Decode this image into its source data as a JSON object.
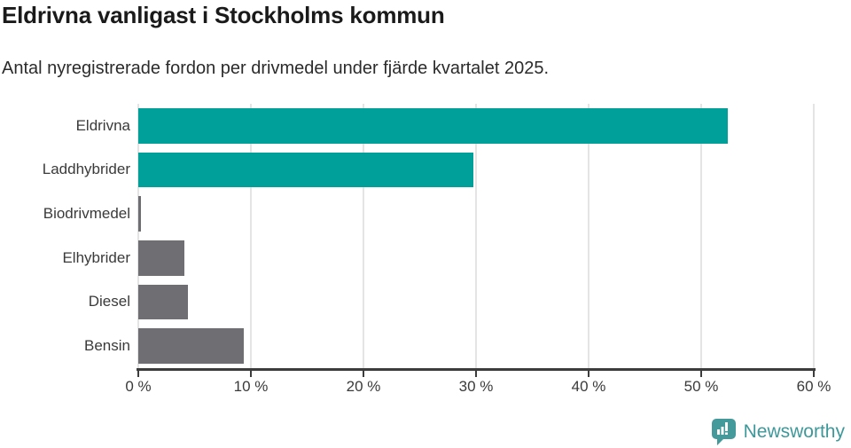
{
  "header": {
    "title": "Eldrivna vanligast i Stockholms kommun",
    "subtitle": "Antal nyregistrerade fordon per drivmedel under fjärde kvartalet 2025."
  },
  "chart_data": {
    "type": "bar",
    "orientation": "horizontal",
    "title": "Eldrivna vanligast i Stockholms kommun",
    "subtitle": "Antal nyregistrerade fordon per drivmedel under fjärde kvartalet 2025.",
    "categories": [
      "Eldrivna",
      "Laddhybrider",
      "Biodrivmedel",
      "Elhybrider",
      "Diesel",
      "Bensin"
    ],
    "values": [
      52.4,
      29.8,
      0.2,
      4.1,
      4.4,
      9.4
    ],
    "unit": "%",
    "xlim": [
      0,
      60
    ],
    "x_ticks": [
      0,
      10,
      20,
      30,
      40,
      50,
      60
    ],
    "x_tick_labels": [
      "0 %",
      "10 %",
      "20 %",
      "30 %",
      "40 %",
      "50 %",
      "60 %"
    ],
    "bar_colors": [
      "#00a09a",
      "#00a09a",
      "#6e6e73",
      "#6e6e73",
      "#6e6e73",
      "#6e6e73"
    ],
    "grid": true,
    "legend": false,
    "colors": {
      "highlight": "#00a09a",
      "default_bar": "#6e6e73",
      "gridline": "#e4e4e4",
      "axis": "#3c3c3c",
      "text": "#3a3a3a"
    }
  },
  "footer": {
    "brand": "Newsworthy",
    "brand_color": "#3e989a",
    "logo_icon": "bar-chart-speech-bubble"
  }
}
